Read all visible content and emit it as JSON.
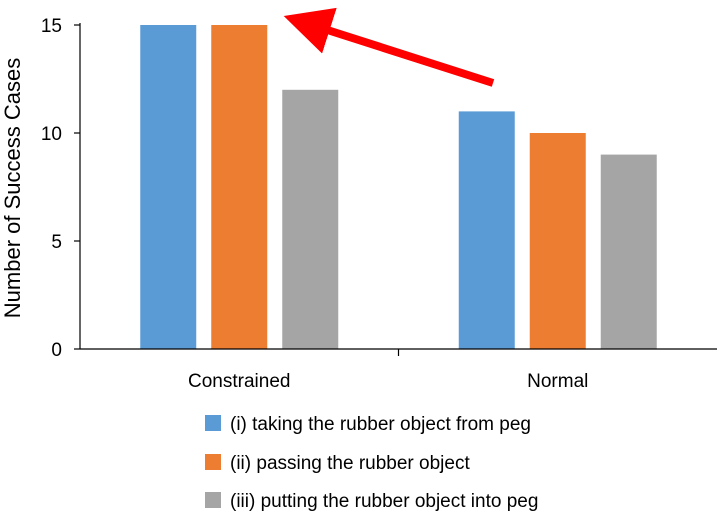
{
  "chart_data": {
    "type": "bar",
    "categories": [
      "Constrained",
      "Normal"
    ],
    "series": [
      {
        "name": "(i)   taking the rubber object from peg",
        "color": "#5B9BD5",
        "values": [
          15,
          11
        ]
      },
      {
        "name": "(ii)  passing the rubber object",
        "color": "#ED7D31",
        "values": [
          15,
          10
        ]
      },
      {
        "name": "(iii) putting the rubber object into peg",
        "color": "#A5A5A5",
        "values": [
          12,
          9
        ]
      }
    ],
    "title": "",
    "xlabel": "",
    "ylabel": "Number of Success Cases",
    "ylim": [
      0,
      15
    ],
    "yticks": [
      0,
      5,
      10,
      15
    ],
    "grid": false,
    "legend_position": "bottom",
    "annotation": {
      "type": "arrow",
      "color": "#FF0000",
      "points_to": "Constrained"
    }
  }
}
